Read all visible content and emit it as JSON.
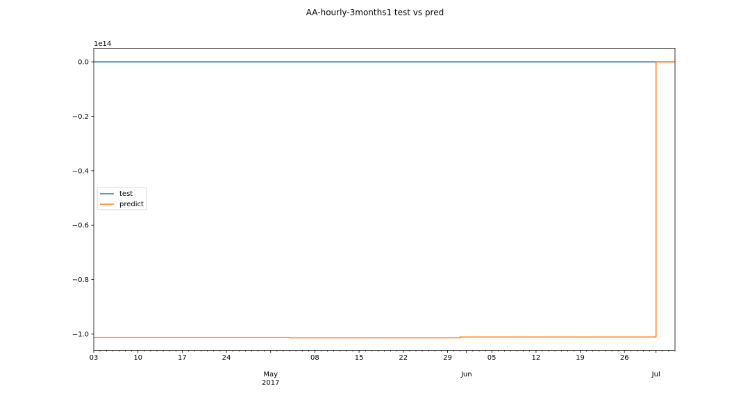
{
  "chart_data": {
    "type": "line",
    "title": "AA-hourly-3months1 test vs pred",
    "xlabel": "",
    "ylabel": "",
    "y_offset_label": "1e14",
    "ylim": [
      -1.06,
      0.05
    ],
    "xlim": [
      "2017-04-03",
      "2017-07-04"
    ],
    "grid": false,
    "legend_position": "center-left",
    "y_ticks": [
      {
        "value": 0.0,
        "label": "0.0"
      },
      {
        "value": -0.2,
        "label": "−0.2"
      },
      {
        "value": -0.4,
        "label": "−0.4"
      },
      {
        "value": -0.6,
        "label": "−0.6"
      },
      {
        "value": -0.8,
        "label": "−0.8"
      },
      {
        "value": -1.0,
        "label": "−1.0"
      }
    ],
    "x_ticks": [
      {
        "date": "2017-04-03",
        "label": "03"
      },
      {
        "date": "2017-04-10",
        "label": "10"
      },
      {
        "date": "2017-04-17",
        "label": "17"
      },
      {
        "date": "2017-04-24",
        "label": "24"
      },
      {
        "date": "2017-05-01",
        "label": "May\n2017"
      },
      {
        "date": "2017-05-08",
        "label": "08"
      },
      {
        "date": "2017-05-15",
        "label": "15"
      },
      {
        "date": "2017-05-22",
        "label": "22"
      },
      {
        "date": "2017-05-29",
        "label": "29"
      },
      {
        "date": "2017-06-01",
        "label": "Jun"
      },
      {
        "date": "2017-06-05",
        "label": "05"
      },
      {
        "date": "2017-06-12",
        "label": "12"
      },
      {
        "date": "2017-06-19",
        "label": "19"
      },
      {
        "date": "2017-06-26",
        "label": "26"
      },
      {
        "date": "2017-07-01",
        "label": "Jul"
      }
    ],
    "series": [
      {
        "name": "test",
        "color": "#1f77b4",
        "step": false,
        "points": [
          [
            "2017-04-03",
            0.0
          ],
          [
            "2017-07-04",
            0.0
          ]
        ]
      },
      {
        "name": "predict",
        "color": "#ff7f0e",
        "step": true,
        "points": [
          [
            "2017-04-03",
            -1.012
          ],
          [
            "2017-05-04",
            -1.014
          ],
          [
            "2017-05-31",
            -1.011
          ],
          [
            "2017-07-01",
            0.0
          ],
          [
            "2017-07-04",
            0.0
          ]
        ]
      }
    ]
  }
}
